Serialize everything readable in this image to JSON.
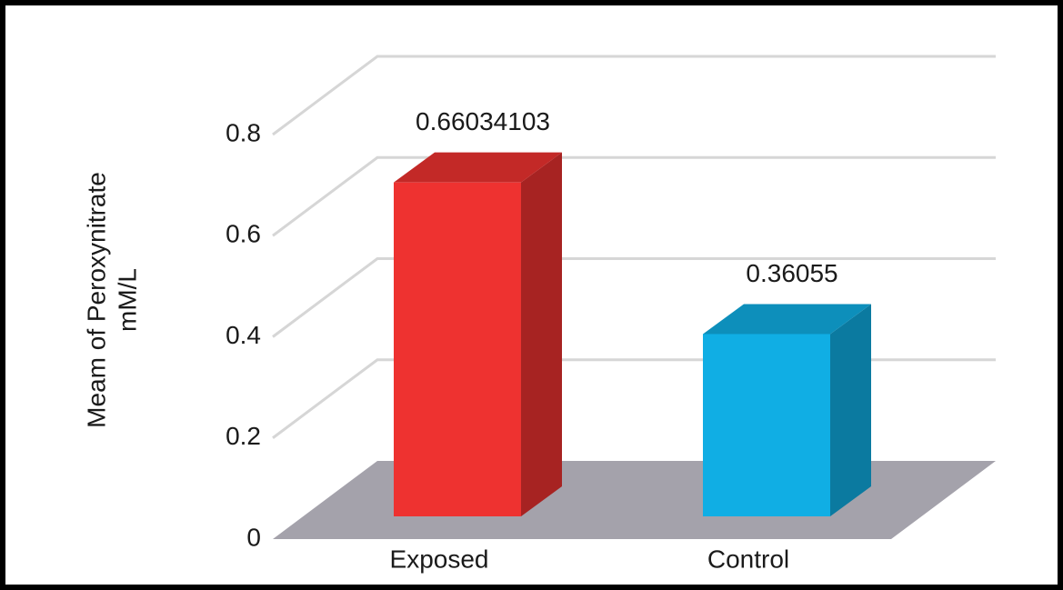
{
  "chart_data": {
    "type": "bar",
    "y_label": [
      "Meam of Peroxynitrate",
      "mM/L"
    ],
    "categories": [
      "Exposed",
      "Control"
    ],
    "values": [
      0.66034103,
      0.36055
    ],
    "colors": [
      "#ee3230",
      "#10aee4"
    ],
    "ylim": [
      0,
      0.8
    ],
    "yticks": [
      0,
      0.2,
      0.4,
      0.6,
      0.8
    ],
    "grid": true
  }
}
